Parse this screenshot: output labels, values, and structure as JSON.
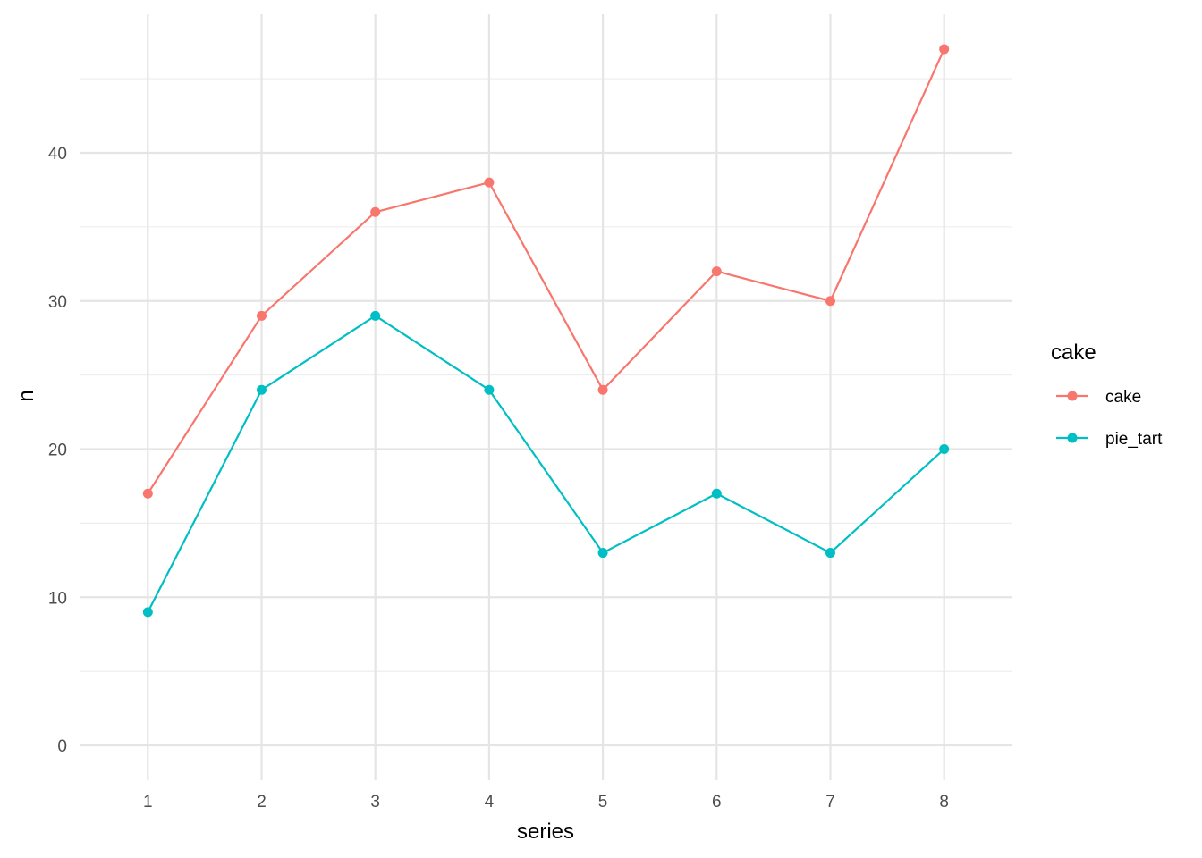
{
  "chart_data": {
    "type": "line",
    "title": "",
    "xlabel": "series",
    "ylabel": "n",
    "x": [
      1,
      2,
      3,
      4,
      5,
      6,
      7,
      8
    ],
    "x_tick_labels": [
      "1",
      "2",
      "3",
      "4",
      "5",
      "6",
      "7",
      "8"
    ],
    "y_ticks": [
      0,
      10,
      20,
      30,
      40
    ],
    "y_tick_labels": [
      "0",
      "10",
      "20",
      "30",
      "40"
    ],
    "xlim": [
      0.4,
      8.6
    ],
    "ylim": [
      -2.35,
      49.35
    ],
    "grid": true,
    "legend": {
      "title": "cake",
      "position": "right"
    },
    "series": [
      {
        "name": "cake",
        "color": "#F8766D",
        "values": [
          17,
          29,
          36,
          38,
          24,
          32,
          30,
          47
        ]
      },
      {
        "name": "pie_tart",
        "color": "#00BFC4",
        "values": [
          9,
          24,
          29,
          24,
          13,
          17,
          13,
          20
        ]
      }
    ]
  }
}
